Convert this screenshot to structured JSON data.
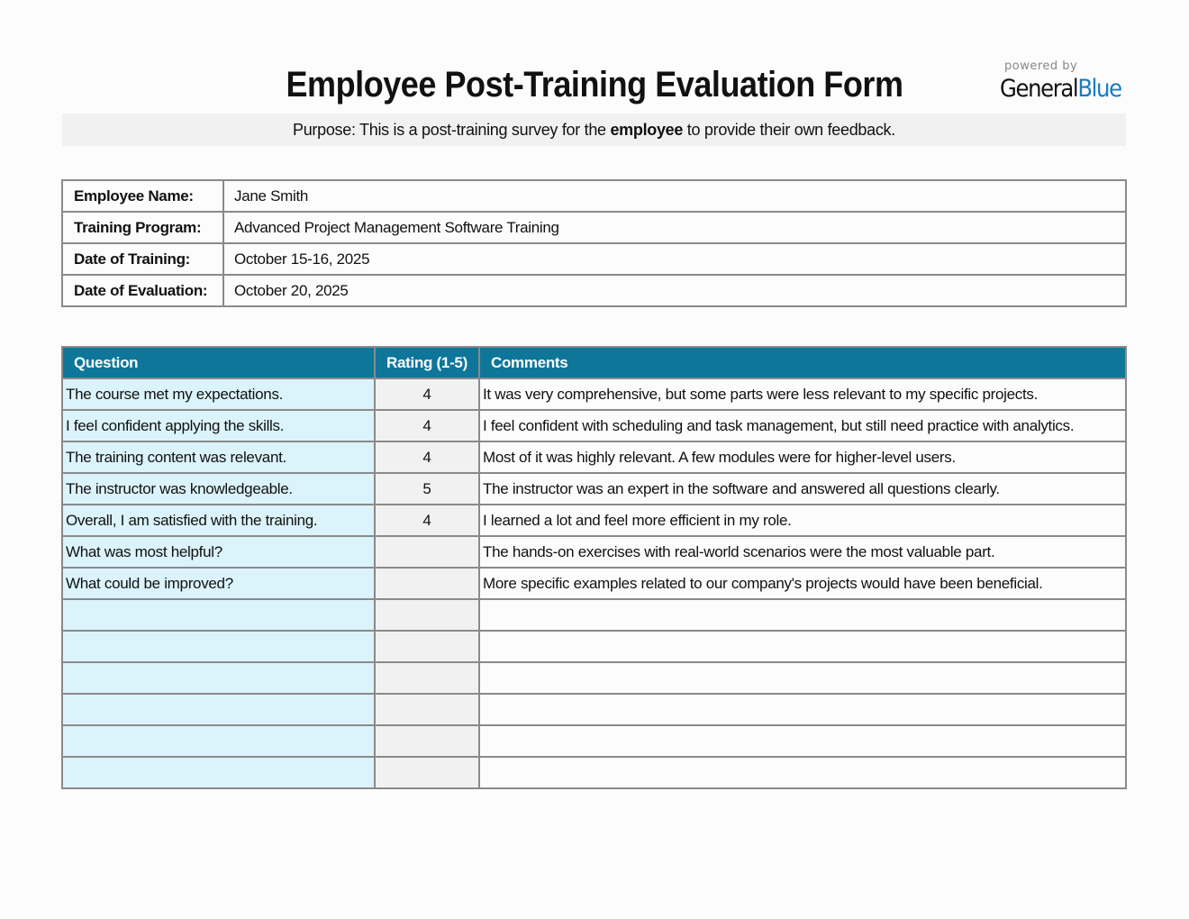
{
  "title": "Employee Post-Training Evaluation Form",
  "logo": {
    "powered_by": "powered by",
    "brand_general": "General",
    "brand_blue": "Blue"
  },
  "purpose": {
    "before": "Purpose: This is a post-training survey for the ",
    "bold": "employee",
    "after": " to provide their own feedback."
  },
  "info": [
    {
      "label": "Employee Name:",
      "value": "Jane Smith"
    },
    {
      "label": "Training Program:",
      "value": "Advanced Project Management Software Training"
    },
    {
      "label": "Date of Training:",
      "value": "October 15-16, 2025"
    },
    {
      "label": "Date of Evaluation:",
      "value": "October 20, 2025"
    }
  ],
  "table": {
    "headers": [
      "Question",
      "Rating (1-5)",
      "Comments"
    ],
    "rows": [
      {
        "q": "The course met my expectations.",
        "r": "4",
        "c": "It was very comprehensive, but some parts were less relevant to my specific projects."
      },
      {
        "q": "I feel confident applying the skills.",
        "r": "4",
        "c": "I feel confident with scheduling and task management, but still need practice with analytics."
      },
      {
        "q": "The training content was relevant.",
        "r": "4",
        "c": "Most of it was highly relevant. A few modules were for higher-level users."
      },
      {
        "q": "The instructor was knowledgeable.",
        "r": "5",
        "c": "The instructor was an expert in the software and answered all questions clearly."
      },
      {
        "q": "Overall, I am satisfied with the training.",
        "r": "4",
        "c": "I learned a lot and feel more efficient in my role."
      },
      {
        "q": "What was most helpful?",
        "r": "",
        "c": "The hands-on exercises with real-world scenarios were the most valuable part."
      },
      {
        "q": "What could be improved?",
        "r": "",
        "c": "More specific examples related to our company's projects would have been beneficial."
      },
      {
        "q": "",
        "r": "",
        "c": ""
      },
      {
        "q": "",
        "r": "",
        "c": ""
      },
      {
        "q": "",
        "r": "",
        "c": ""
      },
      {
        "q": "",
        "r": "",
        "c": ""
      },
      {
        "q": "",
        "r": "",
        "c": ""
      },
      {
        "q": "",
        "r": "",
        "c": ""
      }
    ]
  },
  "colors": {
    "header": "#0e7699",
    "question_bg": "#dbf3fa",
    "rating_bg": "#f1f1f1",
    "brand_blue": "#1a7bbf"
  }
}
